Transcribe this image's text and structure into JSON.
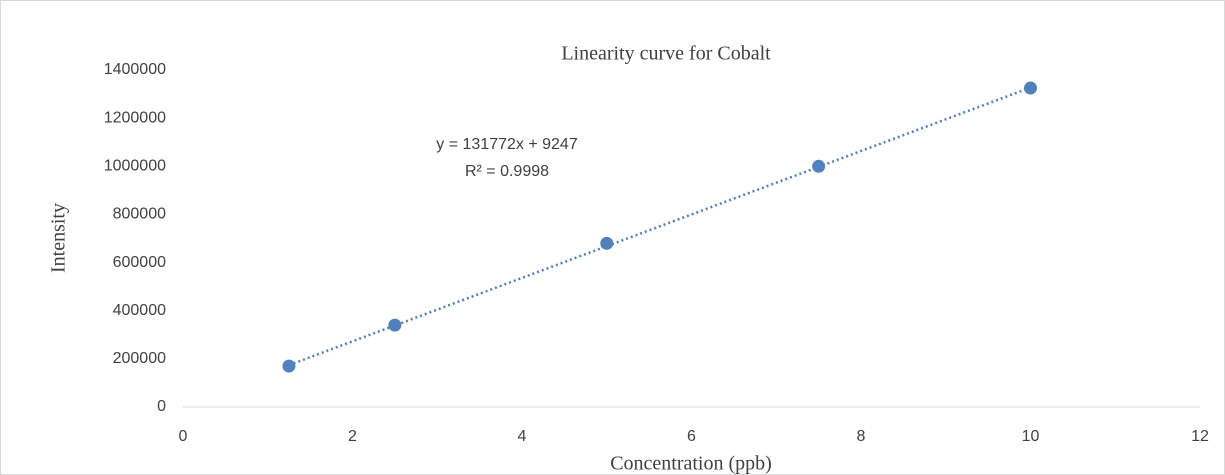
{
  "chart_data": {
    "type": "scatter",
    "title": "Linearity curve for Cobalt",
    "x_label": "Concentration (ppb)",
    "y_label": "Intensity",
    "series": [
      {
        "name": "Cobalt",
        "color": "#4f81bd",
        "x": [
          1.25,
          2.5,
          5,
          7.5,
          10
        ],
        "values": [
          170000,
          340000,
          680000,
          1000000,
          1325000
        ]
      }
    ],
    "trendline": {
      "slope": 131772,
      "intercept": 9247,
      "color": "#4f81bd",
      "equation": "y = 131772x + 9247",
      "r2": "R² = 0.9998"
    },
    "xlim": [
      0,
      12
    ],
    "xticks": [
      0,
      2,
      4,
      6,
      8,
      10,
      12
    ],
    "ylim": [
      0,
      1400000
    ],
    "yticks": [
      0,
      200000,
      400000,
      600000,
      800000,
      1000000,
      1200000,
      1400000
    ],
    "grid": false
  }
}
